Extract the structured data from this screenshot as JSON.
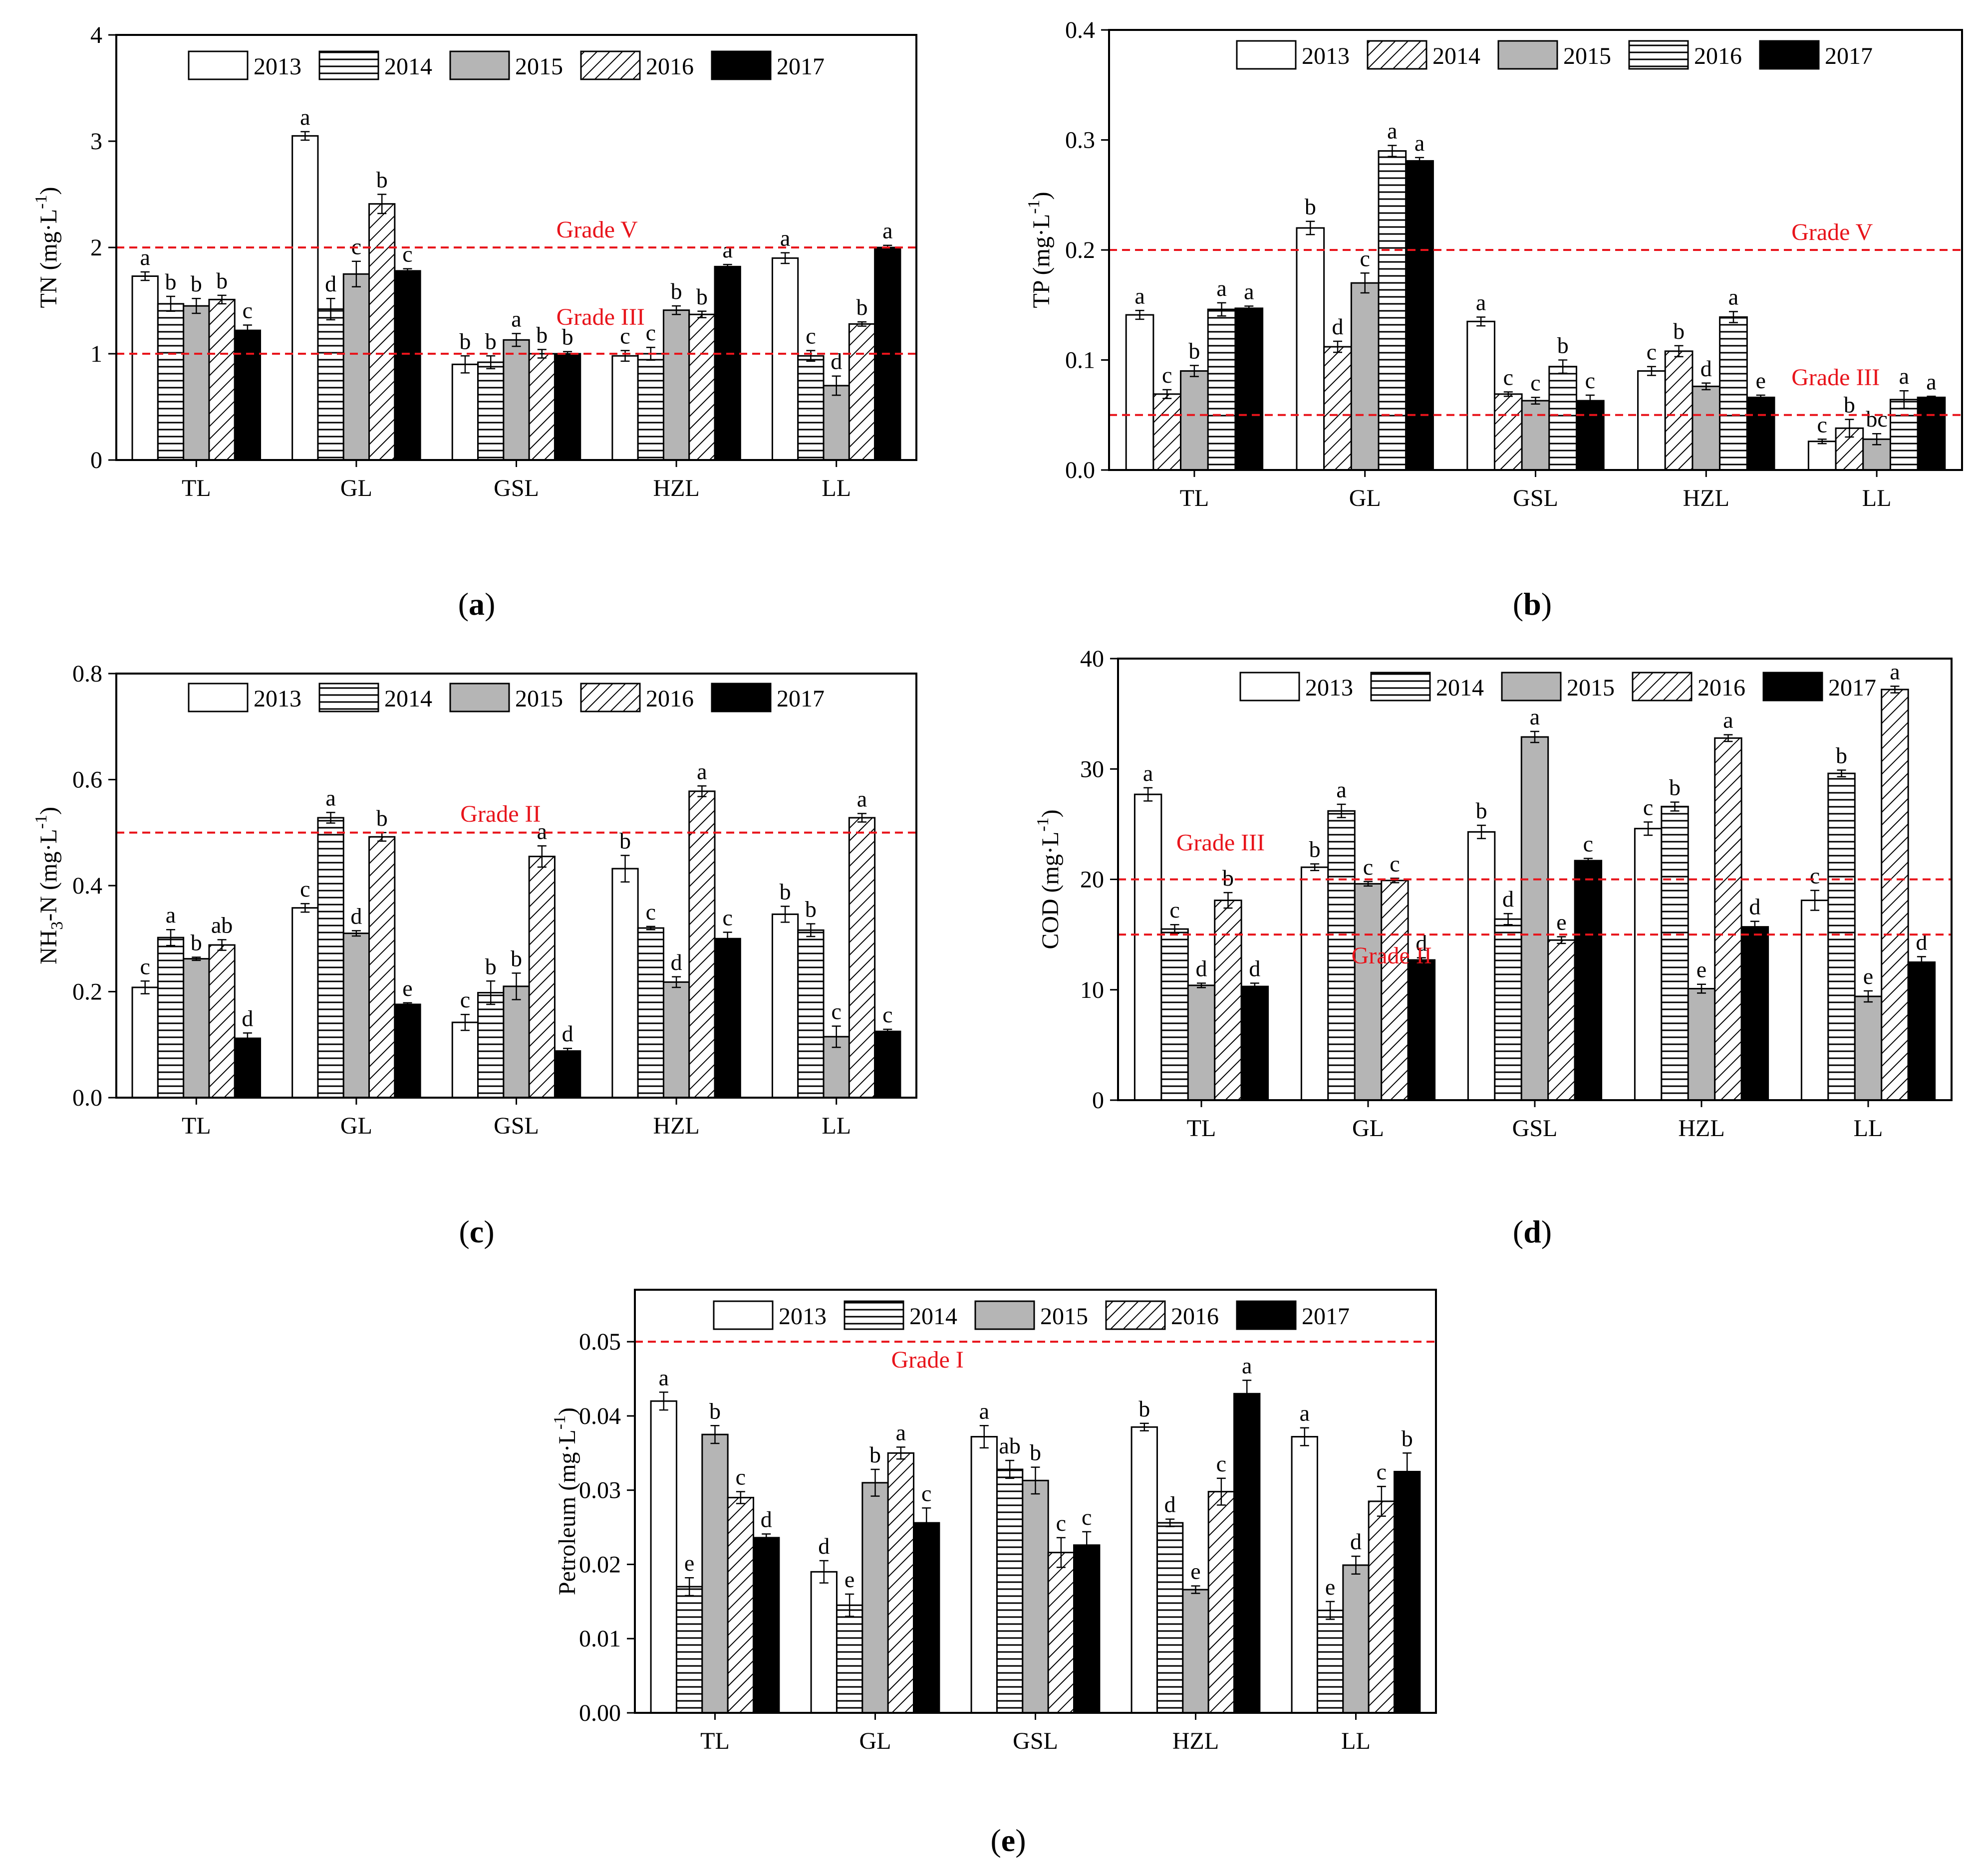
{
  "chart_data": [
    {
      "panel": "(a)",
      "type": "bar",
      "ylabel": "TN (mg·L⁻¹)",
      "ylabel_main": "TN (mg·L",
      "ylabel_sup": "-1",
      "ylabel_end": ")",
      "ylim": [
        0,
        4
      ],
      "yticks": [
        {
          "v": 0,
          "label": "0"
        },
        {
          "v": 1,
          "label": "1"
        },
        {
          "v": 2,
          "label": "2"
        },
        {
          "v": 3,
          "label": "3"
        },
        {
          "v": 4,
          "label": "4"
        }
      ],
      "categories": [
        "TL",
        "GL",
        "GSL",
        "HZL",
        "LL"
      ],
      "series": [
        {
          "name": "2013",
          "pattern": "white",
          "values": [
            1.73,
            3.05,
            0.9,
            0.98,
            1.9
          ],
          "errors": [
            0.04,
            0.04,
            0.08,
            0.05,
            0.05
          ],
          "letters": [
            "a",
            "a",
            "b",
            "c",
            "a"
          ]
        },
        {
          "name": "2014",
          "pattern": "hlines",
          "values": [
            1.47,
            1.42,
            0.92,
            1.0,
            0.98
          ],
          "errors": [
            0.07,
            0.1,
            0.06,
            0.06,
            0.05
          ],
          "letters": [
            "b",
            "d",
            "b",
            "c",
            "c"
          ]
        },
        {
          "name": "2015",
          "pattern": "gray",
          "values": [
            1.45,
            1.75,
            1.13,
            1.41,
            0.7
          ],
          "errors": [
            0.07,
            0.12,
            0.06,
            0.04,
            0.09
          ],
          "letters": [
            "b",
            "c",
            "a",
            "b",
            "d"
          ]
        },
        {
          "name": "2016",
          "pattern": "diag",
          "values": [
            1.51,
            2.41,
            1.0,
            1.37,
            1.28
          ],
          "errors": [
            0.04,
            0.09,
            0.04,
            0.03,
            0.02
          ],
          "letters": [
            "b",
            "b",
            "b",
            "b",
            "b"
          ]
        },
        {
          "name": "2017",
          "pattern": "black",
          "values": [
            1.22,
            1.78,
            1.0,
            1.82,
            2.0
          ],
          "errors": [
            0.05,
            0.02,
            0.02,
            0.02,
            0.02
          ],
          "letters": [
            "c",
            "c",
            "b",
            "a",
            "a"
          ]
        }
      ],
      "reference_lines": [
        {
          "value": 2,
          "label": "Grade V",
          "label_x": 0.55,
          "label_dy": -20
        },
        {
          "value": 1,
          "label": "Grade III",
          "label_x": 0.55,
          "label_dy": -58
        }
      ],
      "panel_label": "a"
    },
    {
      "panel": "(b)",
      "type": "bar",
      "ylabel": "TP (mg·L⁻¹)",
      "ylabel_main": "TP (mg·L",
      "ylabel_sup": "-1",
      "ylabel_end": ")",
      "ylim": [
        0,
        0.4
      ],
      "yticks": [
        {
          "v": 0,
          "label": "0.0"
        },
        {
          "v": 0.1,
          "label": "0.1"
        },
        {
          "v": 0.2,
          "label": "0.2"
        },
        {
          "v": 0.3,
          "label": "0.3"
        },
        {
          "v": 0.4,
          "label": "0.4"
        }
      ],
      "categories": [
        "TL",
        "GL",
        "GSL",
        "HZL",
        "LL"
      ],
      "series": [
        {
          "name": "2013",
          "pattern": "white",
          "values": [
            0.141,
            0.22,
            0.135,
            0.09,
            0.026
          ],
          "errors": [
            0.004,
            0.006,
            0.004,
            0.004,
            0.002
          ],
          "letters": [
            "a",
            "b",
            "a",
            "c",
            "c"
          ]
        },
        {
          "name": "2014",
          "pattern": "diag",
          "values": [
            0.069,
            0.112,
            0.069,
            0.108,
            0.038
          ],
          "errors": [
            0.004,
            0.005,
            0.002,
            0.005,
            0.008
          ],
          "letters": [
            "c",
            "d",
            "c",
            "b",
            "b"
          ]
        },
        {
          "name": "2015",
          "pattern": "gray",
          "values": [
            0.09,
            0.17,
            0.063,
            0.076,
            0.028
          ],
          "errors": [
            0.005,
            0.009,
            0.003,
            0.003,
            0.005
          ],
          "letters": [
            "b",
            "c",
            "c",
            "d",
            "bc"
          ]
        },
        {
          "name": "2016",
          "pattern": "hlines",
          "values": [
            0.146,
            0.29,
            0.094,
            0.139,
            0.064
          ],
          "errors": [
            0.006,
            0.005,
            0.006,
            0.005,
            0.008
          ],
          "letters": [
            "a",
            "a",
            "b",
            "a",
            "a"
          ]
        },
        {
          "name": "2017",
          "pattern": "black",
          "values": [
            0.147,
            0.281,
            0.063,
            0.066,
            0.066
          ],
          "errors": [
            0.002,
            0.003,
            0.005,
            0.002,
            0.001
          ],
          "letters": [
            "a",
            "a",
            "c",
            "e",
            "a"
          ]
        }
      ],
      "reference_lines": [
        {
          "value": 0.2,
          "label": "Grade V",
          "label_x": 0.8,
          "label_dy": -20
        },
        {
          "value": 0.05,
          "label": "Grade III",
          "label_x": 0.8,
          "label_dy": -60
        }
      ],
      "panel_label": "b"
    },
    {
      "panel": "(c)",
      "type": "bar",
      "ylabel": "NH₃-N (mg·L⁻¹)",
      "ylabel_main": "NH",
      "ylabel_sub": "3",
      "ylabel_mid": "-N (mg·L",
      "ylabel_sup": "-1",
      "ylabel_end": ")",
      "ylim": [
        0,
        0.8
      ],
      "yticks": [
        {
          "v": 0,
          "label": "0.0"
        },
        {
          "v": 0.2,
          "label": "0.2"
        },
        {
          "v": 0.4,
          "label": "0.4"
        },
        {
          "v": 0.6,
          "label": "0.6"
        },
        {
          "v": 0.8,
          "label": "0.8"
        }
      ],
      "categories": [
        "TL",
        "GL",
        "GSL",
        "HZL",
        "LL"
      ],
      "series": [
        {
          "name": "2013",
          "pattern": "white",
          "values": [
            0.208,
            0.358,
            0.142,
            0.432,
            0.346
          ],
          "errors": [
            0.012,
            0.008,
            0.015,
            0.025,
            0.015
          ],
          "letters": [
            "c",
            "c",
            "c",
            "b",
            "b"
          ]
        },
        {
          "name": "2014",
          "pattern": "hlines",
          "values": [
            0.302,
            0.528,
            0.198,
            0.32,
            0.316
          ],
          "errors": [
            0.015,
            0.01,
            0.022,
            0.003,
            0.012
          ],
          "letters": [
            "a",
            "a",
            "b",
            "c",
            "b"
          ]
        },
        {
          "name": "2015",
          "pattern": "gray",
          "values": [
            0.262,
            0.31,
            0.21,
            0.218,
            0.115
          ],
          "errors": [
            0.003,
            0.005,
            0.025,
            0.01,
            0.02
          ],
          "letters": [
            "b",
            "d",
            "b",
            "d",
            "c"
          ]
        },
        {
          "name": "2016",
          "pattern": "diag",
          "values": [
            0.288,
            0.492,
            0.455,
            0.578,
            0.528
          ],
          "errors": [
            0.01,
            0.008,
            0.02,
            0.01,
            0.008
          ],
          "letters": [
            "ab",
            "b",
            "a",
            "a",
            "a"
          ]
        },
        {
          "name": "2017",
          "pattern": "black",
          "values": [
            0.112,
            0.176,
            0.088,
            0.3,
            0.125
          ],
          "errors": [
            0.01,
            0.003,
            0.005,
            0.012,
            0.004
          ],
          "letters": [
            "d",
            "e",
            "d",
            "c",
            "c"
          ]
        }
      ],
      "reference_lines": [
        {
          "value": 0.5,
          "label": "Grade II",
          "label_x": 0.43,
          "label_dy": -22
        }
      ],
      "panel_label": "c"
    },
    {
      "panel": "(d)",
      "type": "bar",
      "ylabel": "COD (mg·L⁻¹)",
      "ylabel_main": "COD (mg·L",
      "ylabel_sup": "-1",
      "ylabel_end": ")",
      "ylim": [
        0,
        40
      ],
      "yticks": [
        {
          "v": 0,
          "label": "0"
        },
        {
          "v": 10,
          "label": "10"
        },
        {
          "v": 20,
          "label": "20"
        },
        {
          "v": 30,
          "label": "30"
        },
        {
          "v": 40,
          "label": "40"
        }
      ],
      "categories": [
        "TL",
        "GL",
        "GSL",
        "HZL",
        "LL"
      ],
      "series": [
        {
          "name": "2013",
          "pattern": "white",
          "values": [
            27.7,
            21.1,
            24.3,
            24.6,
            18.1
          ],
          "errors": [
            0.6,
            0.3,
            0.6,
            0.6,
            0.9
          ],
          "letters": [
            "a",
            "b",
            "b",
            "c",
            "c"
          ]
        },
        {
          "name": "2014",
          "pattern": "hlines",
          "values": [
            15.5,
            26.2,
            16.4,
            26.6,
            29.6
          ],
          "errors": [
            0.4,
            0.6,
            0.5,
            0.4,
            0.3
          ],
          "letters": [
            "c",
            "a",
            "d",
            "b",
            "b"
          ]
        },
        {
          "name": "2015",
          "pattern": "gray",
          "values": [
            10.4,
            19.6,
            32.9,
            10.1,
            9.4
          ],
          "errors": [
            0.2,
            0.2,
            0.5,
            0.4,
            0.5
          ],
          "letters": [
            "d",
            "c",
            "a",
            "e",
            "e"
          ]
        },
        {
          "name": "2016",
          "pattern": "diag",
          "values": [
            18.1,
            19.9,
            14.5,
            32.8,
            37.2
          ],
          "errors": [
            0.7,
            0.2,
            0.3,
            0.3,
            0.3
          ],
          "letters": [
            "b",
            "c",
            "e",
            "a",
            "a"
          ]
        },
        {
          "name": "2017",
          "pattern": "black",
          "values": [
            10.3,
            12.7,
            21.7,
            15.7,
            12.5
          ],
          "errors": [
            0.3,
            0.2,
            0.2,
            0.5,
            0.5
          ],
          "letters": [
            "d",
            "d",
            "c",
            "d",
            "d"
          ]
        }
      ],
      "reference_lines": [
        {
          "value": 20,
          "label": "Grade III",
          "label_x": 0.07,
          "label_dy": -58
        },
        {
          "value": 15,
          "label": "Grade II",
          "label_x": 0.28,
          "label_dy": 58
        }
      ],
      "panel_label": "d"
    },
    {
      "panel": "(e)",
      "type": "bar",
      "ylabel": "Petroleum (mg·L⁻¹)",
      "ylabel_main": "Petroleum (mg·L",
      "ylabel_sup": "-1",
      "ylabel_end": ")",
      "ylim": [
        0,
        0.057
      ],
      "yticks": [
        {
          "v": 0,
          "label": "0.00"
        },
        {
          "v": 0.01,
          "label": "0.01"
        },
        {
          "v": 0.02,
          "label": "0.02"
        },
        {
          "v": 0.03,
          "label": "0.03"
        },
        {
          "v": 0.04,
          "label": "0.04"
        },
        {
          "v": 0.05,
          "label": "0.05"
        }
      ],
      "categories": [
        "TL",
        "GL",
        "GSL",
        "HZL",
        "LL"
      ],
      "series": [
        {
          "name": "2013",
          "pattern": "white",
          "values": [
            0.042,
            0.019,
            0.0372,
            0.0385,
            0.0372
          ],
          "errors": [
            0.0012,
            0.0015,
            0.0015,
            0.0005,
            0.0012
          ],
          "letters": [
            "a",
            "d",
            "a",
            "b",
            "a"
          ]
        },
        {
          "name": "2014",
          "pattern": "hlines",
          "values": [
            0.017,
            0.0145,
            0.0328,
            0.0256,
            0.0138
          ],
          "errors": [
            0.0012,
            0.0015,
            0.0012,
            0.0005,
            0.0012
          ],
          "letters": [
            "e",
            "e",
            "ab",
            "d",
            "e"
          ]
        },
        {
          "name": "2015",
          "pattern": "gray",
          "values": [
            0.0375,
            0.031,
            0.0313,
            0.0166,
            0.0199
          ],
          "errors": [
            0.0012,
            0.0018,
            0.0018,
            0.0005,
            0.0012
          ],
          "letters": [
            "b",
            "b",
            "b",
            "e",
            "d"
          ]
        },
        {
          "name": "2016",
          "pattern": "diag",
          "values": [
            0.029,
            0.035,
            0.0216,
            0.0298,
            0.0285
          ],
          "errors": [
            0.0008,
            0.0008,
            0.002,
            0.0018,
            0.002
          ],
          "letters": [
            "c",
            "a",
            "c",
            "c",
            "c"
          ]
        },
        {
          "name": "2017",
          "pattern": "black",
          "values": [
            0.0236,
            0.0256,
            0.0226,
            0.043,
            0.0325
          ],
          "errors": [
            0.0005,
            0.002,
            0.0018,
            0.0018,
            0.0025
          ],
          "letters": [
            "d",
            "c",
            "c",
            "a",
            "b"
          ]
        }
      ],
      "reference_lines": [
        {
          "value": 0.05,
          "label": "Grade I",
          "label_x": 0.32,
          "label_dy": 52
        }
      ],
      "panel_label": "e"
    }
  ]
}
